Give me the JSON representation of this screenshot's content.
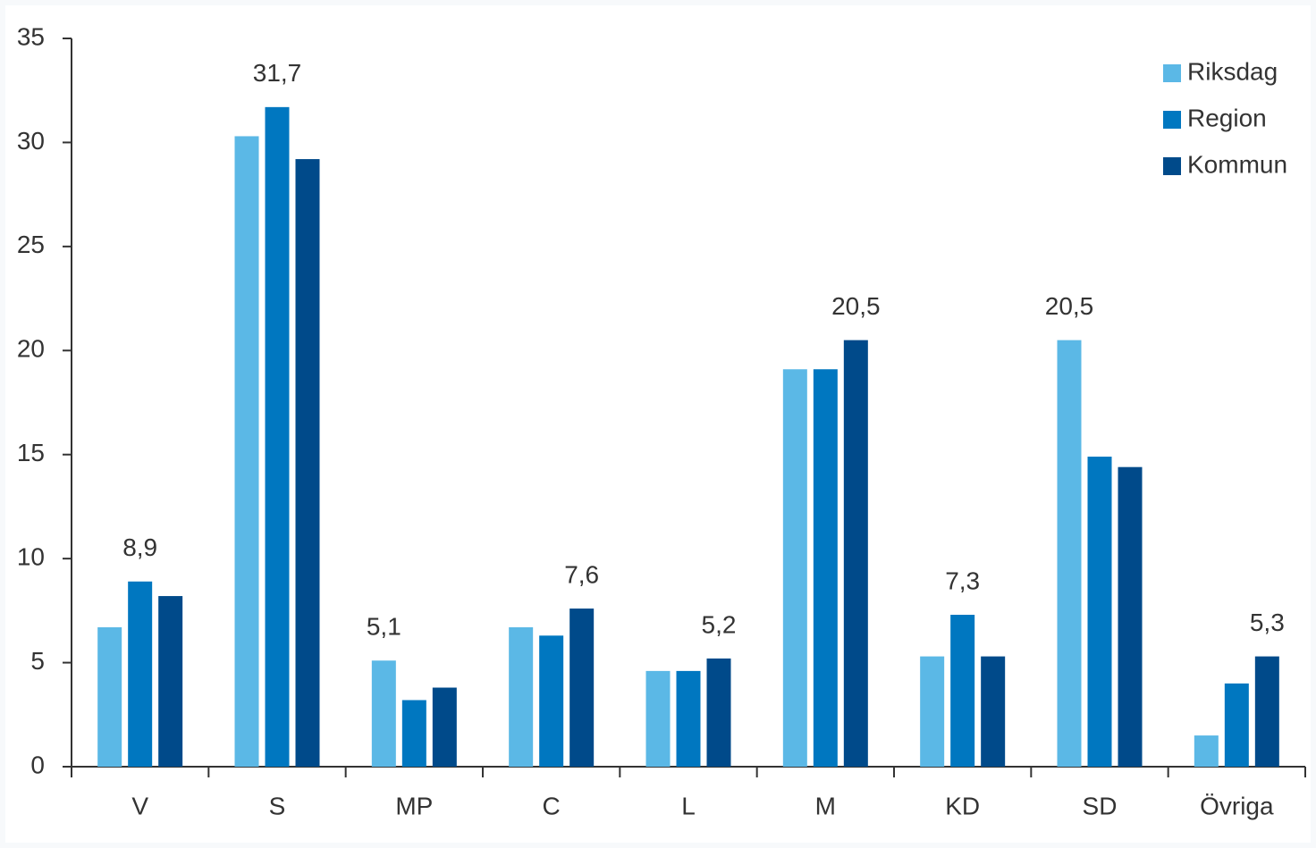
{
  "chart_data": {
    "type": "bar",
    "categories": [
      "V",
      "S",
      "MP",
      "C",
      "L",
      "M",
      "KD",
      "SD",
      "Övriga"
    ],
    "series": [
      {
        "name": "Riksdag",
        "color": "#5bb8e6",
        "values": [
          6.7,
          30.3,
          5.1,
          6.7,
          4.6,
          19.1,
          5.3,
          20.5,
          1.5
        ],
        "value_labels": [
          null,
          null,
          "5,1",
          null,
          null,
          null,
          null,
          "20,5",
          null
        ]
      },
      {
        "name": "Region",
        "color": "#0077c0",
        "values": [
          8.9,
          31.7,
          3.2,
          6.3,
          4.6,
          19.1,
          7.3,
          14.9,
          4.0
        ],
        "value_labels": [
          "8,9",
          "31,7",
          null,
          null,
          null,
          null,
          "7,3",
          null,
          null
        ]
      },
      {
        "name": "Kommun",
        "color": "#004a8a",
        "values": [
          8.2,
          29.2,
          3.8,
          7.6,
          5.2,
          20.5,
          5.3,
          14.4,
          5.3
        ],
        "value_labels": [
          null,
          null,
          null,
          "7,6",
          "5,2",
          "20,5",
          null,
          null,
          "5,3"
        ]
      }
    ],
    "ylim": [
      0,
      35
    ],
    "yticks": [
      0,
      5,
      10,
      15,
      20,
      25,
      30,
      35
    ],
    "grid": false,
    "legend": "top-right"
  }
}
